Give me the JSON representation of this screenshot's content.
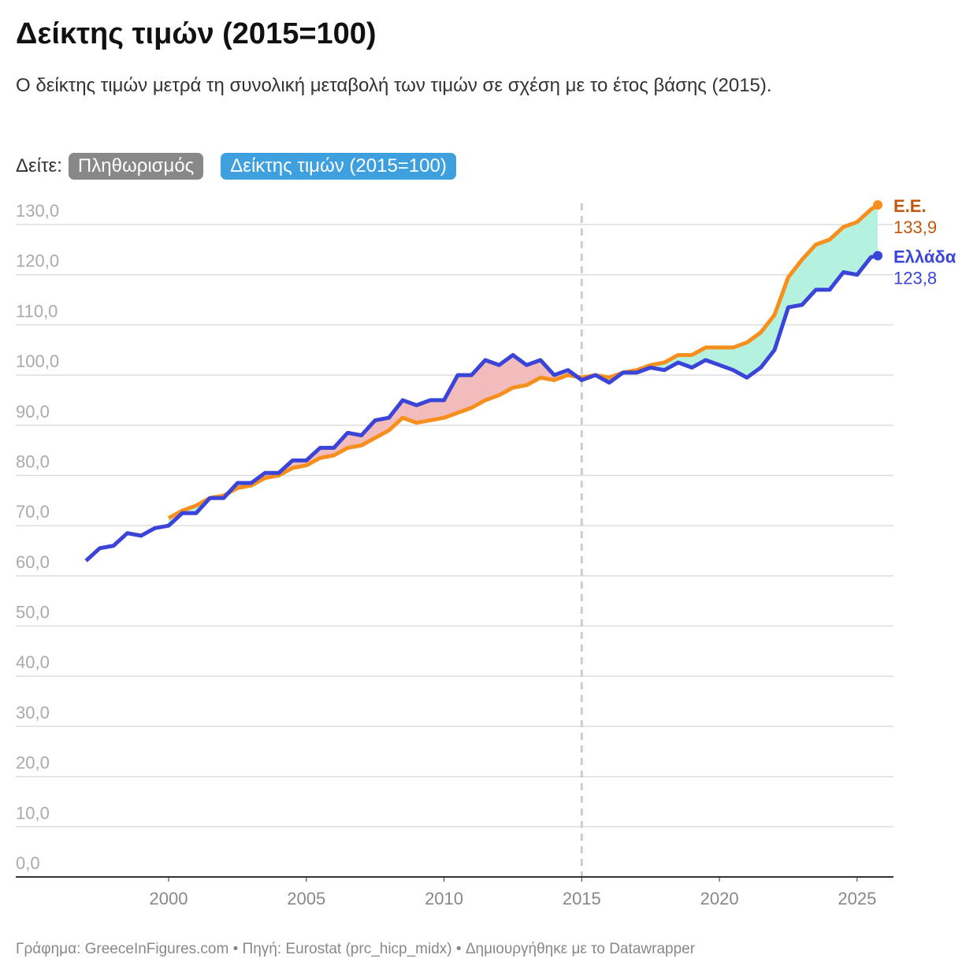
{
  "chart_data": {
    "type": "line",
    "title": "Δείκτης τιμών (2015=100)",
    "subtitle": "Ο δείκτης τιμών μετρά τη συνολική μεταβολή των τιμών σε σχέση με το έτος βάσης (2015).",
    "controls": {
      "label": "Δείτε:",
      "buttons": [
        "Πληθωρισμός",
        "Δείκτης τιμών (2015=100)"
      ]
    },
    "footer": "Γράφημα: GreeceInFigures.com • Πηγή: Eurostat (prc_hicp_midx) • Δημιουργήθηκε με το Datawrapper",
    "x": [
      1997,
      1997.5,
      1998,
      1998.5,
      1999,
      1999.5,
      2000,
      2000.5,
      2001,
      2001.5,
      2002,
      2002.5,
      2003,
      2003.5,
      2004,
      2004.5,
      2005,
      2005.5,
      2006,
      2006.5,
      2007,
      2007.5,
      2008,
      2008.5,
      2009,
      2009.5,
      2010,
      2010.5,
      2011,
      2011.5,
      2012,
      2012.5,
      2013,
      2013.5,
      2014,
      2014.5,
      2015,
      2015.5,
      2016,
      2016.5,
      2017,
      2017.5,
      2018,
      2018.5,
      2019,
      2019.5,
      2020,
      2020.5,
      2021,
      2021.5,
      2022,
      2022.5,
      2023,
      2023.5,
      2024,
      2024.5,
      2025,
      2025.5,
      2025.75
    ],
    "series": [
      {
        "name": "Ε.Ε.",
        "color": "#f78f1e",
        "label_color": "#c2570c",
        "values": [
          null,
          null,
          null,
          null,
          null,
          null,
          71.5,
          73,
          74,
          75.5,
          76,
          77.5,
          78,
          79.5,
          80,
          81.5,
          82,
          83.5,
          84,
          85.5,
          86,
          87.5,
          89,
          91.5,
          90.5,
          91,
          91.5,
          92.5,
          93.5,
          95,
          96,
          97.5,
          98,
          99.5,
          99,
          100,
          99.5,
          100,
          99.5,
          100.5,
          101,
          102,
          102.5,
          104,
          104,
          105.5,
          105.5,
          105.5,
          106.5,
          108.5,
          112,
          119.5,
          123,
          126,
          127,
          129.5,
          130.5,
          133,
          133.9
        ],
        "value_labels": [
          null,
          null,
          null,
          null,
          null,
          null,
          null,
          null,
          null,
          null,
          null,
          null,
          null,
          null,
          null,
          null,
          null,
          null,
          null,
          null,
          null,
          null,
          null,
          null,
          null,
          null,
          null,
          null,
          null,
          null,
          null,
          null,
          null,
          null,
          null,
          null,
          null,
          null,
          null,
          null,
          null,
          null,
          null,
          null,
          null,
          null,
          null,
          null,
          null,
          null,
          null,
          null,
          null,
          null,
          null,
          null,
          null,
          null,
          "133,9"
        ]
      },
      {
        "name": "Ελλάδα",
        "color": "#3b44d8",
        "label_color": "#3b44d8",
        "values": [
          63,
          65.5,
          66,
          68.5,
          68,
          69.5,
          70,
          72.5,
          72.5,
          75.5,
          75.5,
          78.5,
          78.5,
          80.5,
          80.5,
          83,
          83,
          85.5,
          85.5,
          88.5,
          88,
          91,
          91.5,
          95,
          94,
          95,
          95,
          100,
          100,
          103,
          102,
          104,
          102,
          103,
          100,
          101,
          99,
          100,
          98.5,
          100.5,
          100.5,
          101.5,
          101,
          102.5,
          101.5,
          103,
          102,
          101,
          99.5,
          101.5,
          105,
          113.5,
          114,
          117,
          117,
          120.5,
          120,
          123.5,
          123.8
        ],
        "value_labels": [
          null,
          null,
          null,
          null,
          null,
          null,
          null,
          null,
          null,
          null,
          null,
          null,
          null,
          null,
          null,
          null,
          null,
          null,
          null,
          null,
          null,
          null,
          null,
          null,
          null,
          null,
          null,
          null,
          null,
          null,
          null,
          null,
          null,
          null,
          null,
          null,
          null,
          null,
          null,
          null,
          null,
          null,
          null,
          null,
          null,
          null,
          null,
          null,
          null,
          null,
          null,
          null,
          null,
          null,
          null,
          null,
          null,
          null,
          "123,8"
        ]
      }
    ],
    "fill_colors": {
      "above": "#f2bcbc",
      "below": "#b4f1df"
    },
    "vline": 2015,
    "xlim": [
      1994.45,
      2026.32
    ],
    "xticks": [
      2000,
      2005,
      2010,
      2015,
      2020,
      2025
    ],
    "ylim": [
      0,
      130
    ],
    "yticks": [
      {
        "value": 0,
        "label": "0,0"
      },
      {
        "value": 10,
        "label": "10,0"
      },
      {
        "value": 20,
        "label": "20,0"
      },
      {
        "value": 30,
        "label": "30,0"
      },
      {
        "value": 40,
        "label": "40,0"
      },
      {
        "value": 50,
        "label": "50,0"
      },
      {
        "value": 60,
        "label": "60,0"
      },
      {
        "value": 70,
        "label": "70,0"
      },
      {
        "value": 80,
        "label": "80,0"
      },
      {
        "value": 90,
        "label": "90,0"
      },
      {
        "value": 100,
        "label": "100,0"
      },
      {
        "value": 110,
        "label": "110,0"
      },
      {
        "value": 120,
        "label": "120,0"
      },
      {
        "value": 130,
        "label": "130,0"
      }
    ],
    "grid": true
  }
}
